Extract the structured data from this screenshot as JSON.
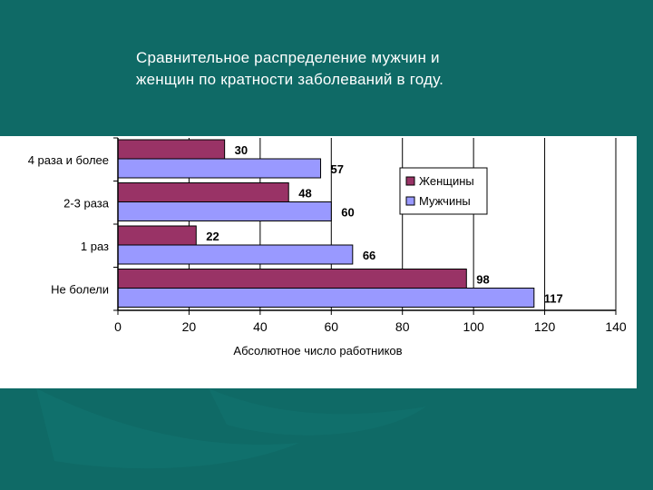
{
  "slide": {
    "title_line1": "Сравнительное распределение мужчин и",
    "title_line2": "женщин по кратности заболеваний в году."
  },
  "colors": {
    "background": "#0f6a66",
    "women": "#993366",
    "men": "#9999ff"
  },
  "chart_data": {
    "type": "bar",
    "orientation": "horizontal",
    "categories": [
      "4 раза и более",
      "2-3 раза",
      "1 раз",
      "Не болели"
    ],
    "series": [
      {
        "name": "Женщины",
        "color": "#993366",
        "values": [
          30,
          48,
          22,
          98
        ]
      },
      {
        "name": "Мужчины",
        "color": "#9999ff",
        "values": [
          57,
          60,
          66,
          117
        ]
      }
    ],
    "xlabel": "Абсолютное число работников",
    "ylabel": "",
    "xlim": [
      0,
      140
    ],
    "xticks": [
      0,
      20,
      40,
      60,
      80,
      100,
      120,
      140
    ],
    "grid": true,
    "legend": "top-right"
  }
}
